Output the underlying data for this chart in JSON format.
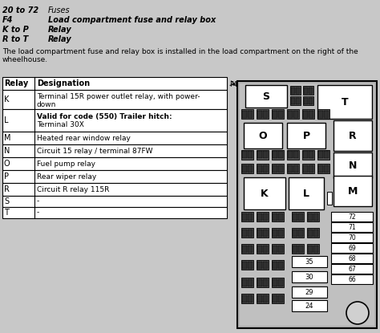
{
  "header_lines": [
    [
      "20 to 72",
      "Fuses",
      false
    ],
    [
      "F4",
      "Load compartment fuse and relay box",
      true
    ],
    [
      "K to P",
      "Relay",
      true
    ],
    [
      "R to T",
      "Relay",
      true
    ]
  ],
  "description": "The load compartment fuse and relay box is installed in the load compartment on the right of the\nwheelhouse.",
  "table_headers": [
    "Relay",
    "Designation"
  ],
  "table_rows": [
    [
      "K",
      "Terminal 15R power outlet relay, with power-\ndown",
      false
    ],
    [
      "L",
      "Valid for code (550) Trailer hitch:\nTerminal 30X",
      true
    ],
    [
      "M",
      "Heated rear window relay",
      false
    ],
    [
      "N",
      "Circuit 15 relay / terminal 87FW",
      false
    ],
    [
      "O",
      "Fuel pump relay",
      false
    ],
    [
      "P",
      "Rear wiper relay",
      false
    ],
    [
      "R",
      "Circuit R relay 115R",
      false
    ],
    [
      "S",
      "-",
      false
    ],
    [
      "T",
      "-",
      false
    ]
  ],
  "bg_color": "#c8c8c8",
  "white": "#ffffff",
  "black": "#000000",
  "fuse_dark": "#404040",
  "fuse_med": "#808080"
}
